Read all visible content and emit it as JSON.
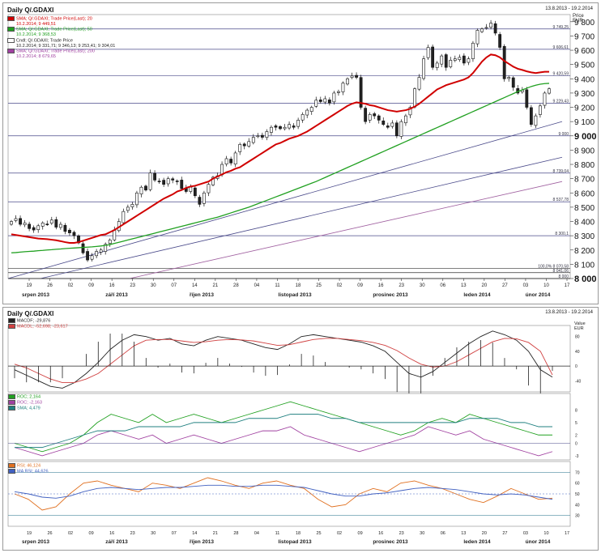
{
  "main": {
    "title": "Daily Q/.GDAXI",
    "date_range": "13.8.2013 - 19.2.2014",
    "price_label": "Price",
    "currency": "EUR",
    "legend": [
      {
        "label": "SMA; Q/.GDAXI; Trade Price(Last); 20",
        "value": "10.2.2014; 9 449,51",
        "color": "#d00000"
      },
      {
        "label": "SMA; Q/.GDAXI; Trade Price(Last); 50",
        "value": "10.2.2014; 9 368,53",
        "color": "#20a020"
      },
      {
        "label": "Cndl; Q/.GDAXI; Trade Price",
        "value": "10.2.2014; 9 331,71; 9 346,13; 9 253,41; 9 304,01",
        "color": "#ffffff"
      },
      {
        "label": "SMA; Q/.GDAXI; Trade Price(Last); 200",
        "value": "10.2.2014; 8 679,65",
        "color": "#a040a0"
      }
    ],
    "hline_labels": [
      "9 749,25",
      "9 606,61",
      "9 420,59",
      "9 229,43",
      "9 000",
      "8 739,04",
      "8 537,78",
      "8 300,1",
      "100,0% 8 070,58",
      "8 041,06",
      "8 000"
    ]
  },
  "lower": {
    "title": "Daily Q/.GDAXI",
    "date_range": "13.8.2013 - 19.2.2014",
    "value_label": "Value",
    "currency": "EUR",
    "macd_legend": [
      {
        "label": "MACDF; -29,876",
        "color": "#222222"
      },
      {
        "label": "MACDL; -52,698; -23,617",
        "color": "#d04040"
      }
    ],
    "roc_legend": [
      {
        "label": "ROC; 2,164",
        "color": "#20a020"
      },
      {
        "label": "ROC; -2,163",
        "color": "#a040a0"
      },
      {
        "label": "SMA; 4,479",
        "color": "#208080"
      }
    ],
    "rsi_legend": [
      {
        "label": "RSI; 46,124",
        "color": "#e07020"
      },
      {
        "label": "MA RSI; 44,626",
        "color": "#4060c0"
      }
    ]
  },
  "chart_data": [
    {
      "type": "candlestick",
      "title": "Daily Q/.GDAXI",
      "ylabel": "Price EUR",
      "ylim": [
        8000,
        9850
      ],
      "y_ticks": [
        8000,
        8100,
        8200,
        8300,
        8400,
        8500,
        8600,
        8700,
        8800,
        8900,
        9000,
        9100,
        9200,
        9300,
        9400,
        9500,
        9600,
        9700,
        9800
      ],
      "x_ticks": [
        "19",
        "26",
        "02",
        "09",
        "16",
        "23",
        "30",
        "07",
        "14",
        "21",
        "28",
        "04",
        "11",
        "18",
        "25",
        "02",
        "09",
        "16",
        "23",
        "30",
        "06",
        "13",
        "20",
        "27",
        "03",
        "10",
        "17"
      ],
      "months": [
        "srpen 2013",
        "září 2013",
        "říjen 2013",
        "listopad 2013",
        "prosinec 2013",
        "leden 2014",
        "únor 2014"
      ],
      "close": [
        8400,
        8420,
        8380,
        8390,
        8350,
        8340,
        8370,
        8390,
        8380,
        8410,
        8360,
        8380,
        8330,
        8320,
        8300,
        8250,
        8180,
        8130,
        8160,
        8190,
        8200,
        8240,
        8270,
        8340,
        8400,
        8470,
        8500,
        8520,
        8600,
        8640,
        8620,
        8740,
        8690,
        8680,
        8660,
        8700,
        8690,
        8680,
        8630,
        8610,
        8640,
        8580,
        8520,
        8600,
        8660,
        8710,
        8720,
        8800,
        8840,
        8810,
        8880,
        8940,
        8930,
        8960,
        8990,
        9000,
        8990,
        9030,
        9060,
        9060,
        9050,
        9060,
        9080,
        9060,
        9110,
        9150,
        9180,
        9200,
        9250,
        9240,
        9260,
        9230,
        9300,
        9310,
        9370,
        9400,
        9420,
        9410,
        9200,
        9100,
        9150,
        9140,
        9110,
        9080,
        9060,
        9090,
        9000,
        9100,
        9140,
        9200,
        9330,
        9410,
        9540,
        9620,
        9480,
        9510,
        9560,
        9480,
        9530,
        9540,
        9550,
        9510,
        9540,
        9650,
        9740,
        9750,
        9760,
        9790,
        9720,
        9620,
        9400,
        9410,
        9340,
        9300,
        9320,
        9200,
        9080,
        9140,
        9210,
        9300,
        9330
      ],
      "sma20": [
        8310,
        8305,
        8300,
        8295,
        8290,
        8285,
        8280,
        8278,
        8276,
        8272,
        8268,
        8262,
        8255,
        8250,
        8250,
        8255,
        8265,
        8275,
        8285,
        8295,
        8305,
        8310,
        8325,
        8340,
        8360,
        8380,
        8400,
        8420,
        8440,
        8460,
        8480,
        8500,
        8520,
        8540,
        8560,
        8575,
        8590,
        8610,
        8620,
        8635,
        8645,
        8650,
        8660,
        8670,
        8680,
        8700,
        8715,
        8730,
        8745,
        8755,
        8770,
        8780,
        8800,
        8820,
        8840,
        8860,
        8880,
        8900,
        8920,
        8940,
        8950,
        8965,
        8980,
        8990,
        9000,
        9015,
        9030,
        9050,
        9070,
        9090,
        9110,
        9130,
        9150,
        9170,
        9190,
        9210,
        9225,
        9235,
        9230,
        9225,
        9215,
        9210,
        9200,
        9190,
        9180,
        9175,
        9170,
        9175,
        9180,
        9190,
        9205,
        9225,
        9250,
        9275,
        9300,
        9325,
        9340,
        9355,
        9365,
        9375,
        9385,
        9395,
        9410,
        9440,
        9480,
        9520,
        9550,
        9570,
        9565,
        9550,
        9525,
        9505,
        9485,
        9470,
        9462,
        9452,
        9445,
        9440,
        9445,
        9449,
        9449
      ],
      "sma50": [
        8180,
        8182,
        8185,
        8188,
        8190,
        8192,
        8195,
        8197,
        8200,
        8202,
        8205,
        8207,
        8210,
        8212,
        8214,
        8216,
        8218,
        8220,
        8222,
        8225,
        8228,
        8232,
        8238,
        8246,
        8254,
        8262,
        8270,
        8278,
        8286,
        8294,
        8302,
        8310,
        8318,
        8326,
        8334,
        8342,
        8350,
        8358,
        8366,
        8374,
        8382,
        8390,
        8398,
        8406,
        8414,
        8422,
        8430,
        8440,
        8450,
        8460,
        8470,
        8480,
        8490,
        8500,
        8512,
        8524,
        8536,
        8548,
        8560,
        8572,
        8584,
        8596,
        8608,
        8620,
        8632,
        8644,
        8656,
        8668,
        8680,
        8694,
        8708,
        8722,
        8736,
        8750,
        8764,
        8778,
        8792,
        8806,
        8820,
        8834,
        8848,
        8862,
        8876,
        8890,
        8904,
        8918,
        8932,
        8946,
        8960,
        8974,
        8988,
        9002,
        9016,
        9030,
        9044,
        9058,
        9072,
        9086,
        9100,
        9114,
        9128,
        9142,
        9156,
        9170,
        9184,
        9198,
        9212,
        9226,
        9240,
        9254,
        9268,
        9282,
        9296,
        9310,
        9322,
        9334,
        9346,
        9355,
        9362,
        9366,
        9368
      ]
    },
    {
      "type": "line",
      "name_panel": "MACD",
      "series": [
        {
          "name": "MACDF",
          "values": [
            -10,
            -25,
            -40,
            -55,
            -60,
            -45,
            -20,
            10,
            45,
            70,
            85,
            80,
            70,
            75,
            60,
            55,
            70,
            80,
            75,
            70,
            60,
            50,
            45,
            60,
            80,
            85,
            80,
            75,
            70,
            65,
            55,
            40,
            10,
            -20,
            -30,
            -15,
            10,
            35,
            60,
            80,
            95,
            85,
            70,
            40,
            -10,
            -30
          ]
        },
        {
          "name": "MACDL",
          "values": [
            5,
            -5,
            -20,
            -35,
            -45,
            -45,
            -35,
            -20,
            5,
            30,
            55,
            70,
            72,
            72,
            68,
            64,
            66,
            70,
            72,
            71,
            68,
            62,
            56,
            58,
            65,
            72,
            75,
            75,
            72,
            69,
            64,
            56,
            42,
            22,
            5,
            -3,
            0,
            12,
            30,
            48,
            66,
            75,
            74,
            64,
            40,
            -24
          ]
        }
      ]
    },
    {
      "type": "line",
      "name_panel": "ROC",
      "series": [
        {
          "name": "ROC 2,164",
          "values": [
            0,
            -1,
            -2,
            -1,
            0,
            2,
            5,
            7,
            6,
            5,
            7,
            5,
            6,
            7,
            6,
            5,
            6,
            7,
            8,
            9,
            10,
            9,
            8,
            7,
            6,
            5,
            4,
            3,
            2,
            3,
            5,
            6,
            5,
            7,
            6,
            5,
            4,
            3,
            2,
            2
          ]
        },
        {
          "name": "ROC -2,163",
          "values": [
            -1,
            -2,
            -3,
            -2,
            -1,
            0,
            2,
            3,
            2,
            1,
            2,
            0,
            1,
            2,
            1,
            0,
            1,
            2,
            3,
            3,
            4,
            2,
            1,
            0,
            -1,
            -2,
            -1,
            0,
            1,
            2,
            4,
            3,
            2,
            3,
            1,
            0,
            -1,
            -2,
            -3,
            -2
          ]
        },
        {
          "name": "SMA 4,479",
          "values": [
            -1,
            -1,
            -1,
            0,
            1,
            2,
            3,
            3,
            3,
            4,
            4,
            4,
            4,
            5,
            5,
            5,
            5,
            6,
            6,
            6,
            7,
            7,
            7,
            6,
            6,
            5,
            5,
            5,
            5,
            5,
            5,
            5,
            5,
            6,
            6,
            6,
            5,
            5,
            4,
            4
          ]
        }
      ]
    },
    {
      "type": "line",
      "name_panel": "RSI",
      "series": [
        {
          "name": "RSI 46,124",
          "values": [
            50,
            45,
            35,
            38,
            50,
            60,
            62,
            58,
            55,
            52,
            60,
            58,
            55,
            60,
            65,
            62,
            58,
            55,
            60,
            62,
            58,
            55,
            45,
            38,
            40,
            50,
            55,
            52,
            60,
            62,
            58,
            55,
            50,
            45,
            42,
            48,
            55,
            50,
            45,
            46
          ]
        },
        {
          "name": "MA RSI 44,626",
          "values": [
            52,
            50,
            47,
            46,
            48,
            52,
            55,
            56,
            55,
            54,
            55,
            56,
            56,
            57,
            58,
            58,
            57,
            57,
            58,
            58,
            57,
            56,
            53,
            50,
            48,
            48,
            50,
            51,
            53,
            55,
            56,
            55,
            54,
            52,
            50,
            49,
            50,
            49,
            47,
            45
          ]
        }
      ]
    }
  ]
}
